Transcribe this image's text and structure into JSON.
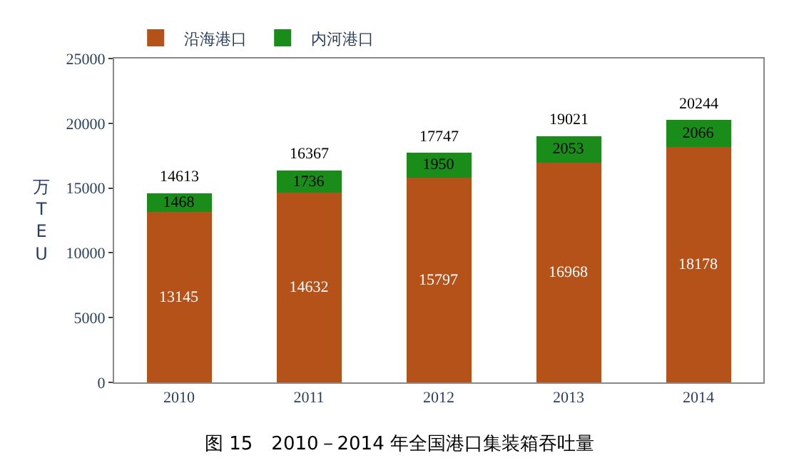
{
  "chart_data": {
    "type": "bar",
    "title": "图 15　2010－2014 年全国港口集装箱吞吐量",
    "ylabel": "万TEU",
    "categories": [
      "2010",
      "2011",
      "2012",
      "2013",
      "2014"
    ],
    "stacked": true,
    "series": [
      {
        "name": "沿海港口",
        "color": "#b5521a",
        "values": [
          13145,
          14632,
          15797,
          16968,
          18178
        ]
      },
      {
        "name": "内河港口",
        "color": "#1a8c1a",
        "values": [
          1468,
          1736,
          1950,
          2053,
          2066
        ]
      }
    ],
    "totals": [
      "14613",
      "16367",
      "17747",
      "19021",
      "20244"
    ],
    "data_labels": true,
    "ylim": [
      0,
      25000
    ],
    "yticks": [
      0,
      5000,
      10000,
      15000,
      20000,
      25000
    ],
    "legend": "top"
  }
}
